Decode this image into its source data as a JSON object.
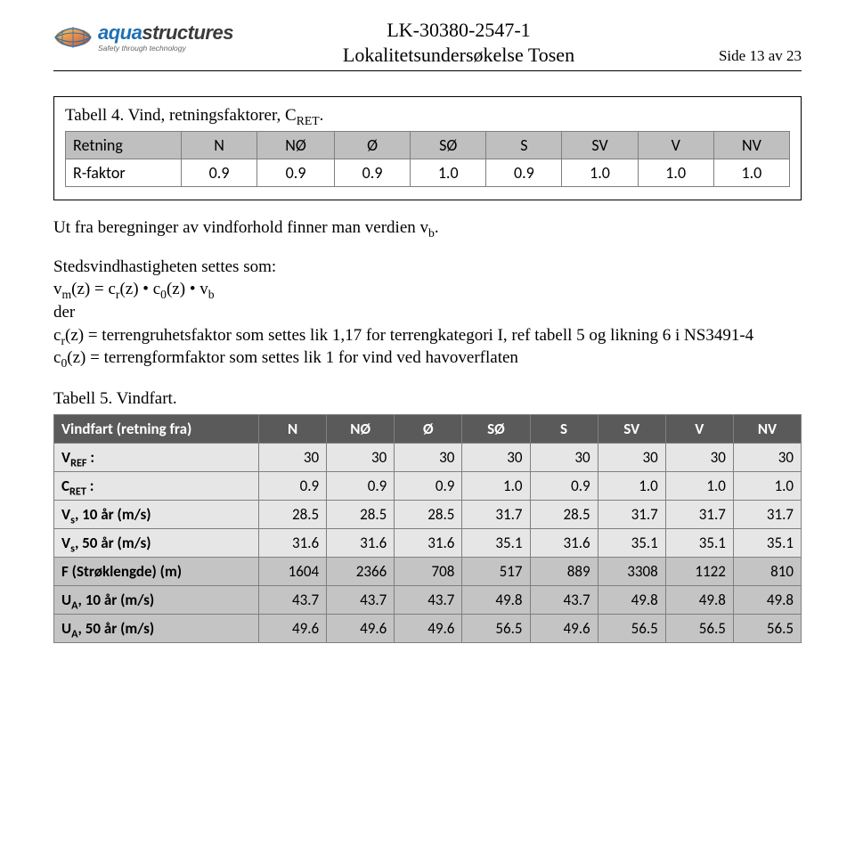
{
  "header": {
    "doc_id": "LK-30380-2547-1",
    "title": "Lokalitetsundersøkelse Tosen",
    "side": "Side 13 av 23",
    "logo_name_a": "aqua",
    "logo_name_b": "structures",
    "logo_tag": "Safety through technology"
  },
  "caption1": "Tabell 4. Vind, retningsfaktorer, CRET.",
  "table1": {
    "head_label": "Retning",
    "dirs": [
      "N",
      "NØ",
      "Ø",
      "SØ",
      "S",
      "SV",
      "V",
      "NV"
    ],
    "row_label": "R-faktor",
    "vals": [
      "0.9",
      "0.9",
      "0.9",
      "1.0",
      "0.9",
      "1.0",
      "1.0",
      "1.0"
    ]
  },
  "para1": "Ut fra beregninger av vindforhold finner man verdien vb.",
  "para2_l1": "Stedsvindhastigheten settes som:",
  "para2_l2": "vm(z) = cr(z) • c0(z) • vb",
  "para2_l3": "der",
  "para2_l4": "cr(z) = terrengruhetsfaktor som settes lik 1,17 for terrengkategori I, ref tabell 5 og likning 6 i NS3491-4",
  "para2_l5": "c0(z) = terrengformfaktor som settes lik 1 for vind ved havoverflaten",
  "caption2": "Tabell 5. Vindfart.",
  "table2": {
    "head_label": "Vindfart (retning fra)",
    "dirs": [
      "N",
      "NØ",
      "Ø",
      "SØ",
      "S",
      "SV",
      "V",
      "NV"
    ],
    "rows": [
      {
        "label": "V<sub>REF</sub> :",
        "band": "light",
        "vals": [
          "30",
          "30",
          "30",
          "30",
          "30",
          "30",
          "30",
          "30"
        ]
      },
      {
        "label": "C<sub>RET</sub> :",
        "band": "light",
        "vals": [
          "0.9",
          "0.9",
          "0.9",
          "1.0",
          "0.9",
          "1.0",
          "1.0",
          "1.0"
        ]
      },
      {
        "label": "V<sub>s</sub>, 10 år (m/s)",
        "band": "light",
        "vals": [
          "28.5",
          "28.5",
          "28.5",
          "31.7",
          "28.5",
          "31.7",
          "31.7",
          "31.7"
        ]
      },
      {
        "label": "V<sub>s</sub>, 50 år (m/s)",
        "band": "light",
        "vals": [
          "31.6",
          "31.6",
          "31.6",
          "35.1",
          "31.6",
          "35.1",
          "35.1",
          "35.1"
        ]
      },
      {
        "label": "F (Strøklengde) (m)",
        "band": "dark",
        "vals": [
          "1604",
          "2366",
          "708",
          "517",
          "889",
          "3308",
          "1122",
          "810"
        ]
      },
      {
        "label": "U<sub>A</sub>, 10 år (m/s)",
        "band": "dark",
        "vals": [
          "43.7",
          "43.7",
          "43.7",
          "49.8",
          "43.7",
          "49.8",
          "49.8",
          "49.8"
        ]
      },
      {
        "label": "U<sub>A</sub>, 50 år (m/s)",
        "band": "dark",
        "vals": [
          "49.6",
          "49.6",
          "49.6",
          "56.5",
          "49.6",
          "56.5",
          "56.5",
          "56.5"
        ]
      }
    ]
  }
}
